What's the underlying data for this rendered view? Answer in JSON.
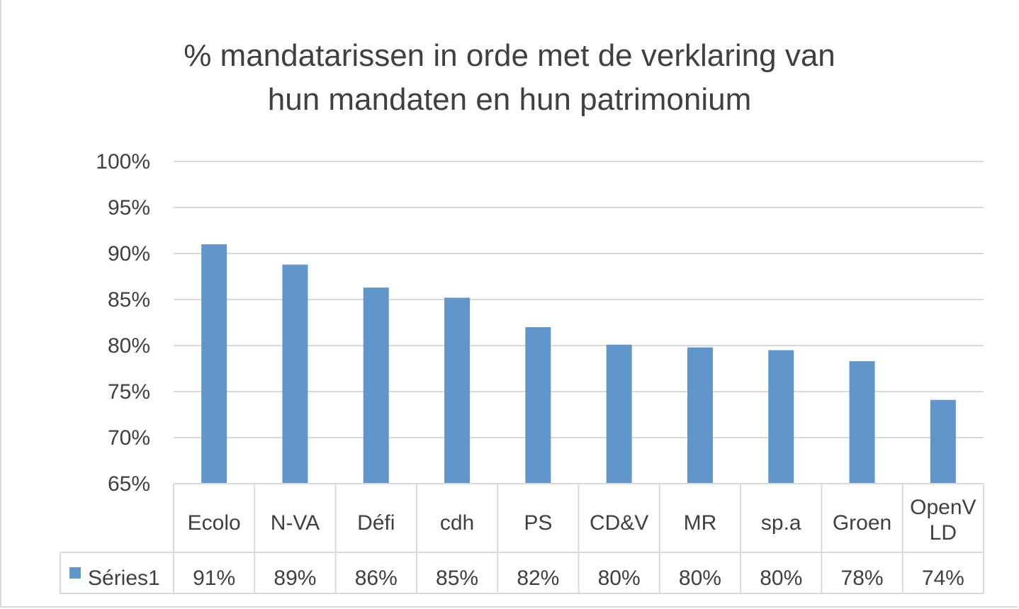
{
  "chart_data": {
    "type": "bar",
    "title_lines": [
      "% mandatarissen in orde met de verklaring van",
      "hun mandaten en hun patrimonium"
    ],
    "categories": [
      [
        "Ecolo"
      ],
      [
        "N-VA"
      ],
      [
        "Défi"
      ],
      [
        "cdh"
      ],
      [
        "PS"
      ],
      [
        "CD&V"
      ],
      [
        "MR"
      ],
      [
        "sp.a"
      ],
      [
        "Groen"
      ],
      [
        "OpenV",
        "LD"
      ]
    ],
    "series": [
      {
        "name": "Séries1",
        "values": [
          91,
          88.8,
          86.3,
          85.2,
          82,
          80.1,
          79.8,
          79.5,
          78.3,
          74.1
        ],
        "labels": [
          "91%",
          "89%",
          "86%",
          "85%",
          "82%",
          "80%",
          "80%",
          "80%",
          "78%",
          "74%"
        ],
        "color": "#6096c9"
      }
    ],
    "ylim": [
      65,
      100
    ],
    "yticks": [
      65,
      70,
      75,
      80,
      85,
      90,
      95,
      100
    ],
    "ytick_labels": [
      "65%",
      "70%",
      "75%",
      "80%",
      "85%",
      "90%",
      "95%",
      "100%"
    ],
    "grid": true,
    "legend": "data-table",
    "colors": {
      "gridline": "#d9d9d9",
      "text": "#404040"
    }
  }
}
